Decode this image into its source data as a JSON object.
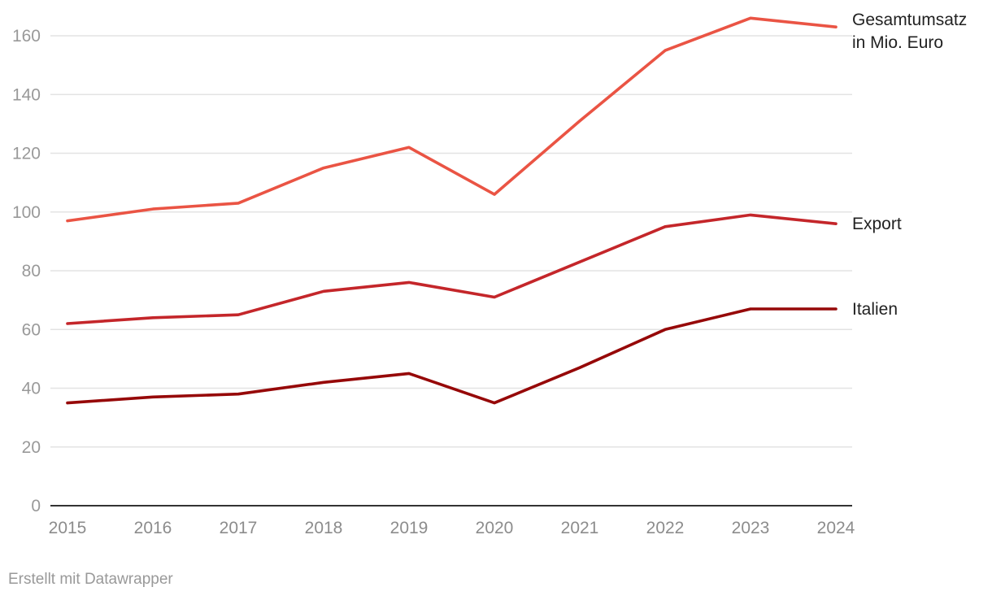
{
  "chart_data": {
    "type": "line",
    "title": "",
    "xlabel": "",
    "ylabel": "",
    "x": [
      2015,
      2016,
      2017,
      2018,
      2019,
      2020,
      2021,
      2022,
      2023,
      2024
    ],
    "ylim": [
      0,
      170
    ],
    "yticks": [
      0,
      20,
      40,
      60,
      80,
      100,
      120,
      140,
      160
    ],
    "grid": true,
    "legend": "direct labels at line ends",
    "series": [
      {
        "name": "Gesamtumsatz in Mio. Euro",
        "label_lines": [
          "Gesamtumsatz",
          "in Mio. Euro"
        ],
        "color": "#ea5444",
        "values": [
          97,
          101,
          103,
          115,
          122,
          106,
          131,
          155,
          166,
          163
        ]
      },
      {
        "name": "Export",
        "label_lines": [
          "Export"
        ],
        "color": "#c4262a",
        "values": [
          62,
          64,
          65,
          73,
          76,
          71,
          83,
          95,
          99,
          96
        ]
      },
      {
        "name": "Italien",
        "label_lines": [
          "Italien"
        ],
        "color": "#960808",
        "values": [
          35,
          37,
          38,
          42,
          45,
          35,
          47,
          60,
          67,
          67
        ]
      }
    ]
  },
  "footer": {
    "credit": "Erstellt mit Datawrapper"
  }
}
